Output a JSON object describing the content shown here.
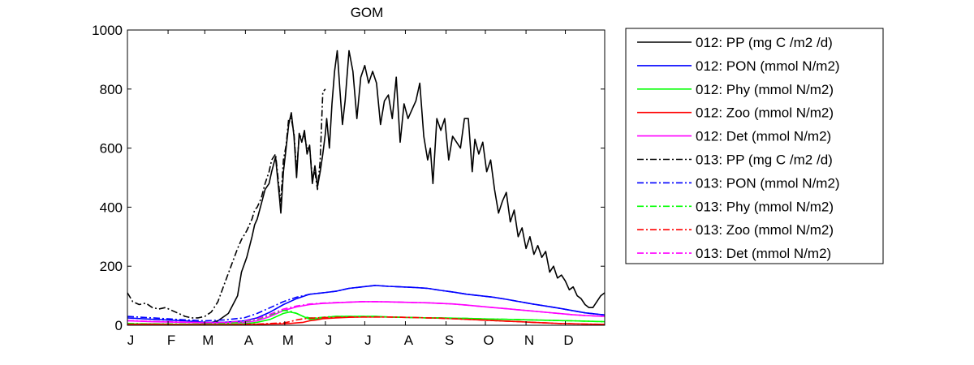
{
  "chart_data": {
    "type": "line",
    "title": "GOM",
    "xlabel": "",
    "ylabel": "",
    "ylim": [
      0,
      1000
    ],
    "xlim": [
      1,
      365
    ],
    "y_ticks": [
      0,
      200,
      400,
      600,
      800,
      1000
    ],
    "month_ticks": [
      {
        "label": "J",
        "day": 1
      },
      {
        "label": "F",
        "day": 32
      },
      {
        "label": "M",
        "day": 60
      },
      {
        "label": "A",
        "day": 91
      },
      {
        "label": "M",
        "day": 121
      },
      {
        "label": "J",
        "day": 152
      },
      {
        "label": "J",
        "day": 182
      },
      {
        "label": "A",
        "day": 213
      },
      {
        "label": "S",
        "day": 244
      },
      {
        "label": "O",
        "day": 274
      },
      {
        "label": "N",
        "day": 305
      },
      {
        "label": "D",
        "day": 335
      }
    ],
    "grid": false,
    "legend_position": "outside-right",
    "series": [
      {
        "name": "012: PP (mg C /m2 /d)",
        "color": "#000000",
        "style": "solid",
        "x": [
          1,
          20,
          45,
          55,
          62,
          70,
          78,
          85,
          88,
          92,
          96,
          98,
          100,
          103,
          106,
          109,
          111,
          114,
          117,
          118,
          120,
          122,
          124,
          126,
          128,
          130,
          132,
          134,
          136,
          138,
          140,
          142,
          144,
          146,
          148,
          150,
          152,
          153,
          155,
          157,
          159,
          161,
          163,
          165,
          167,
          170,
          173,
          176,
          179,
          182,
          185,
          188,
          191,
          194,
          197,
          200,
          203,
          206,
          209,
          212,
          215,
          218,
          221,
          224,
          227,
          230,
          232,
          234,
          237,
          240,
          243,
          246,
          249,
          252,
          255,
          258,
          261,
          264,
          266,
          269,
          272,
          275,
          278,
          281,
          284,
          287,
          290,
          293,
          296,
          299,
          302,
          305,
          308,
          311,
          314,
          317,
          320,
          323,
          326,
          329,
          332,
          335,
          338,
          341,
          344,
          347,
          350,
          353,
          356,
          359,
          362,
          365
        ],
        "y": [
          5,
          4,
          3,
          3,
          5,
          15,
          40,
          100,
          180,
          230,
          300,
          340,
          360,
          410,
          460,
          480,
          520,
          570,
          430,
          380,
          520,
          600,
          680,
          720,
          640,
          500,
          650,
          620,
          660,
          580,
          610,
          480,
          540,
          470,
          520,
          580,
          650,
          700,
          600,
          750,
          860,
          930,
          800,
          680,
          760,
          930,
          860,
          700,
          840,
          880,
          820,
          860,
          820,
          680,
          760,
          780,
          700,
          840,
          620,
          750,
          700,
          730,
          760,
          820,
          640,
          560,
          600,
          480,
          700,
          660,
          700,
          560,
          640,
          620,
          600,
          700,
          700,
          520,
          630,
          580,
          620,
          520,
          560,
          460,
          380,
          420,
          450,
          350,
          390,
          300,
          330,
          260,
          300,
          240,
          270,
          230,
          250,
          180,
          200,
          160,
          170,
          150,
          120,
          130,
          100,
          90,
          70,
          60,
          60,
          80,
          100,
          110
        ],
        "y_unused": []
      },
      {
        "name": "012: PON (mmol N/m2)",
        "color": "#0000ff",
        "style": "solid",
        "x": [
          1,
          20,
          45,
          60,
          75,
          90,
          100,
          110,
          120,
          130,
          140,
          150,
          160,
          170,
          180,
          190,
          200,
          210,
          220,
          230,
          240,
          250,
          260,
          270,
          280,
          290,
          300,
          310,
          320,
          330,
          340,
          350,
          365
        ],
        "y": [
          25,
          20,
          15,
          10,
          10,
          15,
          25,
          45,
          70,
          90,
          105,
          110,
          115,
          125,
          130,
          135,
          132,
          130,
          128,
          125,
          118,
          112,
          105,
          100,
          95,
          88,
          80,
          72,
          65,
          58,
          50,
          42,
          35
        ]
      },
      {
        "name": "012: Phy (mmol N/m2)",
        "color": "#00ff00",
        "style": "solid",
        "x": [
          1,
          20,
          45,
          60,
          75,
          90,
          100,
          110,
          120,
          125,
          130,
          135,
          140,
          145,
          150,
          155,
          160,
          170,
          180,
          190,
          200,
          210,
          220,
          230,
          240,
          250,
          260,
          270,
          280,
          290,
          300,
          310,
          320,
          330,
          340,
          350,
          365
        ],
        "y": [
          5,
          4,
          3,
          3,
          3,
          5,
          10,
          20,
          40,
          45,
          40,
          30,
          20,
          22,
          25,
          28,
          30,
          30,
          30,
          30,
          28,
          27,
          26,
          25,
          25,
          24,
          23,
          22,
          21,
          20,
          19,
          18,
          17,
          16,
          15,
          14,
          12
        ]
      },
      {
        "name": "012: Zoo (mmol N/m2)",
        "color": "#ff0000",
        "style": "solid",
        "x": [
          1,
          20,
          45,
          60,
          75,
          90,
          100,
          110,
          120,
          125,
          130,
          135,
          140,
          145,
          150,
          160,
          170,
          180,
          190,
          200,
          210,
          220,
          230,
          240,
          250,
          260,
          270,
          280,
          290,
          300,
          310,
          320,
          330,
          340,
          350,
          365
        ],
        "y": [
          3,
          3,
          2,
          2,
          2,
          2,
          3,
          4,
          5,
          6,
          8,
          10,
          15,
          18,
          22,
          25,
          27,
          28,
          28,
          28,
          27,
          26,
          25,
          24,
          22,
          20,
          18,
          16,
          14,
          12,
          10,
          8,
          6,
          5,
          4,
          3
        ]
      },
      {
        "name": "012: Det (mmol N/m2)",
        "color": "#ff00ff",
        "style": "solid",
        "x": [
          1,
          20,
          45,
          60,
          75,
          90,
          100,
          110,
          120,
          130,
          140,
          150,
          160,
          170,
          180,
          190,
          200,
          210,
          220,
          230,
          240,
          250,
          260,
          270,
          280,
          290,
          300,
          310,
          320,
          330,
          340,
          350,
          365
        ],
        "y": [
          15,
          12,
          10,
          8,
          8,
          10,
          15,
          30,
          50,
          62,
          70,
          74,
          76,
          78,
          80,
          80,
          79,
          78,
          77,
          76,
          74,
          72,
          68,
          64,
          60,
          56,
          52,
          48,
          44,
          40,
          36,
          33,
          30
        ]
      },
      {
        "name": "013: PP (mg C /m2 /d)",
        "color": "#000000",
        "style": "dashdot",
        "x": [
          1,
          5,
          10,
          15,
          20,
          25,
          30,
          35,
          40,
          45,
          50,
          55,
          60,
          65,
          70,
          75,
          80,
          85,
          88,
          92,
          96,
          98,
          100,
          103,
          106,
          109,
          111,
          114,
          117,
          118,
          120,
          122,
          124,
          126,
          128,
          130,
          132,
          134,
          136,
          138,
          140,
          142,
          144,
          146,
          148,
          150,
          152
        ],
        "y": [
          110,
          80,
          70,
          75,
          60,
          55,
          60,
          50,
          40,
          30,
          25,
          25,
          30,
          45,
          80,
          140,
          200,
          260,
          290,
          320,
          360,
          390,
          400,
          430,
          480,
          520,
          560,
          580,
          450,
          420,
          560,
          610,
          700,
          700,
          650,
          520,
          640,
          640,
          640,
          600,
          600,
          500,
          520,
          460,
          560,
          790,
          800
        ],
        "segments": "day-1-to-152"
      },
      {
        "name": "013: PON (mmol N/m2)",
        "color": "#0000ff",
        "style": "dashdot",
        "x": [
          1,
          20,
          45,
          60,
          75,
          90,
          100,
          110,
          120,
          130,
          140,
          150,
          160,
          170,
          180,
          190,
          200,
          210,
          220,
          230,
          240,
          250,
          260,
          270,
          280,
          290,
          300,
          310,
          320,
          330,
          340,
          350,
          365
        ],
        "y": [
          30,
          25,
          18,
          15,
          18,
          25,
          40,
          60,
          80,
          95,
          105,
          110,
          115,
          125,
          130,
          135,
          132,
          130,
          128,
          125,
          118,
          112,
          105,
          100,
          95,
          88,
          80,
          72,
          65,
          58,
          50,
          42,
          35
        ]
      },
      {
        "name": "013: Phy (mmol N/m2)",
        "color": "#00ff00",
        "style": "dashdot",
        "x": [
          1,
          20,
          45,
          60,
          75,
          90,
          100,
          110,
          120,
          125,
          130,
          135,
          140,
          145,
          150,
          155,
          160,
          170,
          180,
          190,
          200,
          210,
          220,
          230,
          240,
          250,
          260,
          270,
          280,
          290,
          300,
          310,
          320,
          330,
          340,
          350,
          365
        ],
        "y": [
          6,
          5,
          4,
          4,
          6,
          12,
          20,
          35,
          50,
          48,
          40,
          30,
          25,
          25,
          27,
          29,
          30,
          30,
          30,
          30,
          28,
          27,
          26,
          25,
          25,
          24,
          23,
          22,
          21,
          20,
          19,
          18,
          17,
          16,
          15,
          14,
          12
        ]
      },
      {
        "name": "013: Zoo (mmol N/m2)",
        "color": "#ff0000",
        "style": "dashdot",
        "x": [
          1,
          20,
          45,
          60,
          75,
          90,
          100,
          110,
          120,
          125,
          130,
          135,
          140,
          145,
          150,
          160,
          170,
          180,
          190,
          200,
          210,
          220,
          230,
          240,
          250,
          260,
          270,
          280,
          290,
          300,
          310,
          320,
          330,
          340,
          350,
          365
        ],
        "y": [
          3,
          3,
          2,
          2,
          2,
          3,
          4,
          6,
          8,
          12,
          18,
          22,
          24,
          25,
          26,
          27,
          28,
          28,
          28,
          28,
          27,
          26,
          25,
          24,
          22,
          20,
          18,
          16,
          14,
          12,
          10,
          8,
          6,
          5,
          4,
          3
        ]
      },
      {
        "name": "013: Det (mmol N/m2)",
        "color": "#ff00ff",
        "style": "dashdot",
        "x": [
          1,
          20,
          45,
          60,
          75,
          90,
          100,
          110,
          120,
          130,
          140,
          150,
          160,
          170,
          180,
          190,
          200,
          210,
          220,
          230,
          240,
          250,
          260,
          270,
          280,
          290,
          300,
          310,
          320,
          330,
          340,
          350,
          365
        ],
        "y": [
          16,
          13,
          11,
          9,
          10,
          14,
          22,
          38,
          55,
          65,
          72,
          75,
          77,
          78,
          80,
          80,
          79,
          78,
          77,
          76,
          74,
          72,
          68,
          64,
          60,
          56,
          52,
          48,
          44,
          40,
          36,
          33,
          30
        ]
      }
    ]
  }
}
